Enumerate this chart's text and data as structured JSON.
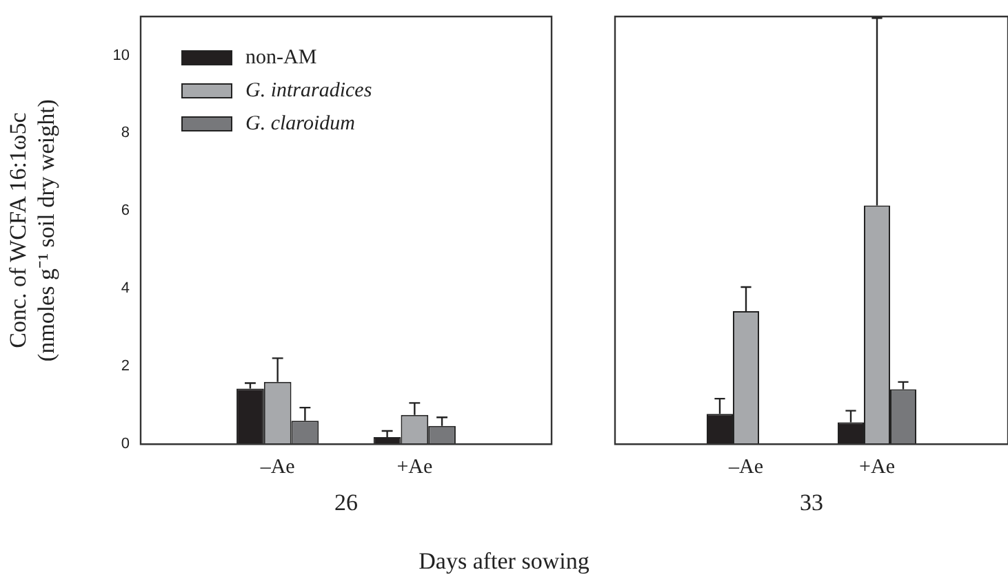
{
  "chart_data": [
    {
      "type": "bar",
      "xlabel": "26",
      "ylabel": "Conc. of WCFA 16:1ω5c\n(nmoles g⁻¹ soil dry weight)",
      "categories": [
        "–Ae",
        "+Ae"
      ],
      "ylim": [
        0,
        11
      ],
      "yticks": [
        0,
        2,
        4,
        6,
        8,
        10
      ],
      "legend": "top left",
      "grid": false,
      "annotations": [
        "Days after sowing"
      ],
      "series": [
        {
          "name": "non-AM",
          "color": "#231f20",
          "values": [
            1.43,
            0.18
          ],
          "errors": [
            [
              1.43,
              1.57
            ],
            [
              0.18,
              0.34
            ]
          ]
        },
        {
          "name": "G. intraradices",
          "color": "#a7a9ac",
          "values": [
            1.6,
            0.75
          ],
          "errors": [
            [
              1.6,
              2.21
            ],
            [
              0.75,
              1.06
            ]
          ]
        },
        {
          "name": "G. claroidum",
          "color": "#77787b",
          "values": [
            0.6,
            0.47
          ],
          "errors": [
            [
              0.6,
              0.94
            ],
            [
              0.47,
              0.69
            ]
          ]
        }
      ]
    },
    {
      "type": "bar",
      "xlabel": "33",
      "categories": [
        "–Ae",
        "+Ae"
      ],
      "ylim": [
        0,
        11
      ],
      "tick_labels": "x",
      "grid": false,
      "legend": false,
      "series": [
        {
          "color": "#231f20",
          "values": [
            0.78,
            0.56
          ],
          "errors": [
            [
              0.78,
              1.17
            ],
            [
              0.56,
              0.86
            ]
          ]
        },
        {
          "color": "#a7a9ac",
          "values": [
            3.42,
            6.14
          ],
          "errors": [
            [
              3.42,
              4.04
            ],
            [
              6.14,
              10.96
            ]
          ]
        },
        {
          "color": "#77787b",
          "values": [
            null,
            1.41
          ],
          "errors": [
            null,
            [
              1.41,
              1.6
            ]
          ]
        }
      ]
    }
  ]
}
